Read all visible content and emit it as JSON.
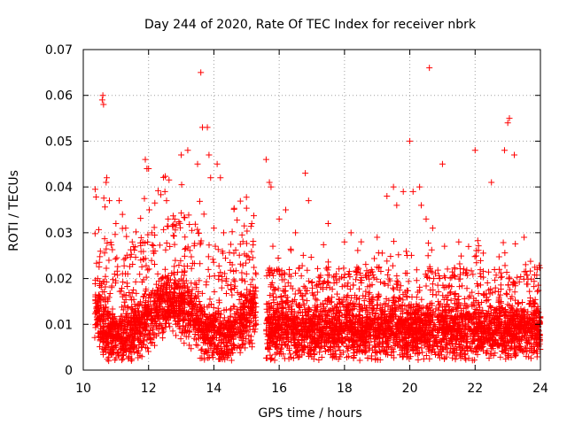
{
  "chart_data": {
    "type": "scatter",
    "title": "Day 244 of 2020, Rate Of TEC Index for receiver nbrk",
    "xlabel": "GPS time / hours",
    "ylabel": "ROTI / TECUs",
    "xlim": [
      10,
      24
    ],
    "ylim": [
      0,
      0.07
    ],
    "grid": true,
    "x_ticks": [
      "10",
      "12",
      "14",
      "16",
      "18",
      "20",
      "22",
      "24"
    ],
    "y_ticks": [
      "0",
      "0.01",
      "0.02",
      "0.03",
      "0.04",
      "0.05",
      "0.06",
      "0.07"
    ],
    "marker": "+",
    "color": "#ff0000",
    "data_gap": [
      15.3,
      15.6
    ],
    "series": [
      {
        "name": "ROTI",
        "x": [
          10.6,
          10.58,
          10.62,
          10.7,
          10.72,
          10.8,
          11.0,
          11.1,
          11.2,
          11.3,
          11.5,
          11.9,
          11.95,
          12.0,
          12.02,
          12.1,
          12.5,
          12.55,
          12.6,
          13.0,
          13.2,
          13.5,
          13.6,
          13.65,
          13.8,
          13.85,
          13.9,
          14.0,
          14.1,
          14.2,
          14.3,
          15.0,
          15.6,
          15.7,
          15.75,
          16.0,
          16.2,
          16.5,
          16.8,
          16.9,
          17.5,
          18.0,
          18.2,
          19.0,
          19.3,
          19.5,
          19.6,
          19.8,
          20.0,
          20.1,
          20.3,
          20.35,
          20.5,
          20.6,
          20.7,
          21.0,
          21.5,
          21.8,
          22.0,
          22.5,
          22.9,
          23.0,
          23.05,
          23.2,
          23.5,
          23.9
        ],
        "y": [
          0.06,
          0.059,
          0.058,
          0.041,
          0.042,
          0.037,
          0.032,
          0.037,
          0.034,
          0.031,
          0.028,
          0.046,
          0.044,
          0.044,
          0.035,
          0.03,
          0.039,
          0.037,
          0.033,
          0.047,
          0.048,
          0.045,
          0.065,
          0.053,
          0.053,
          0.047,
          0.042,
          0.031,
          0.045,
          0.042,
          0.03,
          0.025,
          0.046,
          0.041,
          0.04,
          0.033,
          0.035,
          0.03,
          0.043,
          0.037,
          0.032,
          0.028,
          0.03,
          0.029,
          0.038,
          0.04,
          0.036,
          0.039,
          0.05,
          0.039,
          0.04,
          0.036,
          0.033,
          0.066,
          0.031,
          0.045,
          0.028,
          0.027,
          0.048,
          0.041,
          0.048,
          0.054,
          0.055,
          0.047,
          0.029,
          0.022
        ]
      }
    ]
  }
}
